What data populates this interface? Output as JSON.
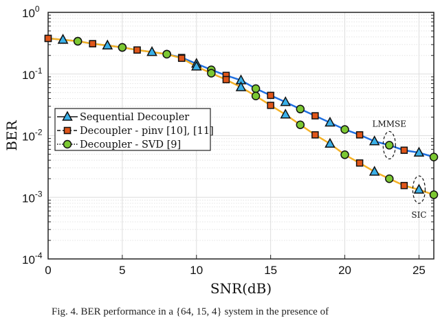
{
  "chart_data": {
    "type": "line",
    "xlabel": "SNR(dB)",
    "ylabel": "BER",
    "xlim": [
      0,
      26
    ],
    "ylim": [
      0.0001,
      1
    ],
    "yscale": "log",
    "grid": true,
    "xticks": [
      "0",
      "5",
      "10",
      "15",
      "20",
      "25"
    ],
    "yticks": [
      {
        "base": "10",
        "exp": "0"
      },
      {
        "base": "10",
        "exp": "-1"
      },
      {
        "base": "10",
        "exp": "-2"
      },
      {
        "base": "10",
        "exp": "-3"
      },
      {
        "base": "10",
        "exp": "-4"
      }
    ],
    "x": [
      0,
      1,
      2,
      3,
      4,
      5,
      6,
      7,
      8,
      9,
      10,
      11,
      12,
      13,
      14,
      15,
      16,
      17,
      18,
      19,
      20,
      21,
      22,
      23,
      24,
      25,
      26
    ],
    "curves": [
      {
        "name": "LMMSE",
        "color": "#1f6fe0",
        "values": [
          0.378,
          0.36,
          0.34,
          0.31,
          0.29,
          0.27,
          0.245,
          0.227,
          0.21,
          0.185,
          0.147,
          0.117,
          0.095,
          0.079,
          0.058,
          0.045,
          0.035,
          0.027,
          0.021,
          0.0163,
          0.0126,
          0.0103,
          0.0081,
          0.007,
          0.0058,
          0.0053,
          0.0045
        ]
      },
      {
        "name": "SIC",
        "color": "#f4b125",
        "values": [
          0.378,
          0.36,
          0.34,
          0.31,
          0.29,
          0.27,
          0.245,
          0.227,
          0.21,
          0.18,
          0.132,
          0.103,
          0.081,
          0.061,
          0.044,
          0.031,
          0.022,
          0.015,
          0.0103,
          0.0074,
          0.0049,
          0.0036,
          0.0026,
          0.002,
          0.00155,
          0.00133,
          0.0011
        ]
      }
    ],
    "legend": {
      "placement": "center-left",
      "entries": [
        {
          "label": "Sequential Decoupler",
          "marker": "triangle",
          "line": "solid",
          "marker_color": "#3ab0e8",
          "x_start": 1
        },
        {
          "label": "Decoupler - pinv [10], [11]",
          "marker": "square",
          "line": "dashed",
          "marker_color": "#e0561a",
          "x_start": 0
        },
        {
          "label": "Decoupler - SVD [9]",
          "marker": "circle",
          "line": "dotted",
          "marker_color": "#7cc832",
          "x_start": 2
        }
      ]
    },
    "annotations": [
      {
        "text": "LMMSE",
        "at_x": 23,
        "curve": "LMMSE"
      },
      {
        "text": "SIC",
        "at_x": 25,
        "curve": "SIC"
      }
    ]
  },
  "caption": "Fig. 4.   BER performance in a {64, 15, 4} system in the presence of"
}
